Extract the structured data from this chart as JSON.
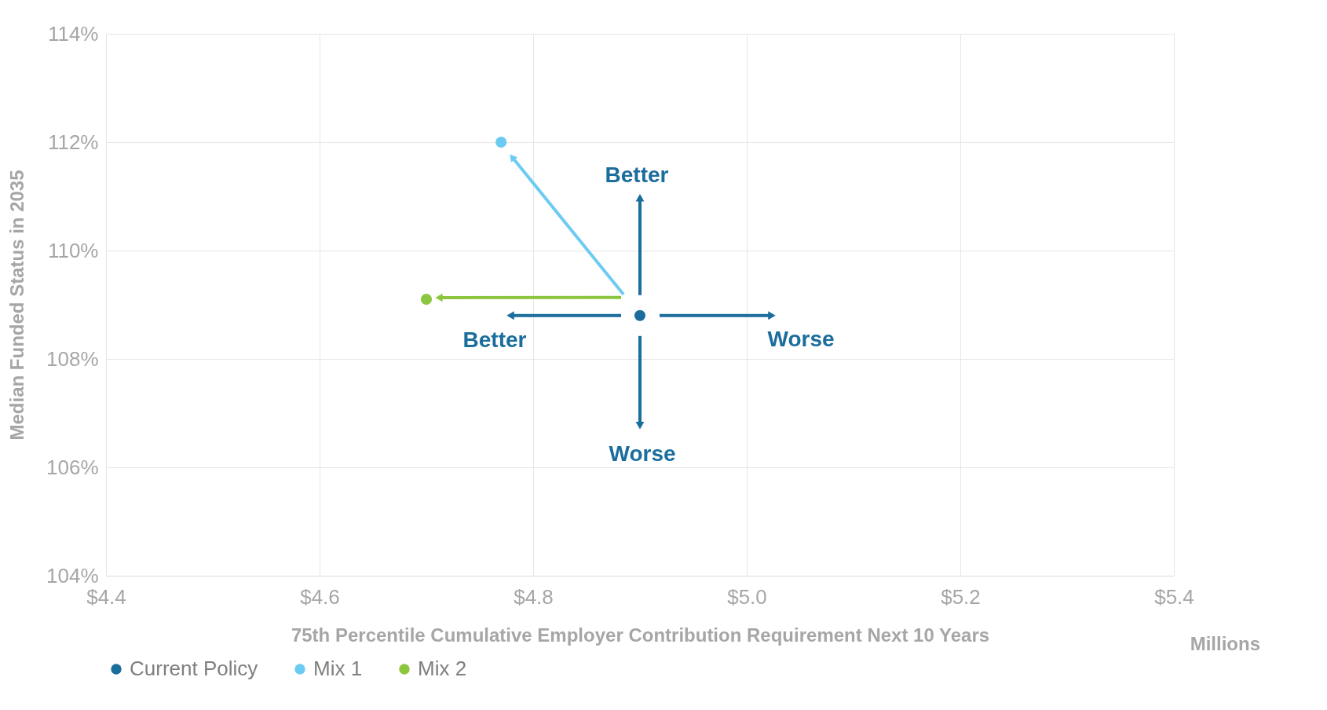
{
  "chart_data": {
    "type": "scatter",
    "xlabel": "75th Percentile Cumulative Employer Contribution Requirement Next 10 Years",
    "ylabel": "Median Funded Status in 2035",
    "series": [
      {
        "name": "Current Policy",
        "color": "#1a6d9c",
        "x": [
          4.9
        ],
        "values": [
          108.8
        ]
      },
      {
        "name": "Mix 1",
        "color": "#6ccbf2",
        "x": [
          4.77
        ],
        "values": [
          112.0
        ]
      },
      {
        "name": "Mix 2",
        "color": "#8cc63f",
        "x": [
          4.7
        ],
        "values": [
          109.1
        ]
      }
    ],
    "xlim": [
      4.4,
      5.4
    ],
    "xticks": [
      {
        "value": 4.4,
        "label": "$4.4"
      },
      {
        "value": 4.6,
        "label": "$4.6"
      },
      {
        "value": 4.8,
        "label": "$4.8"
      },
      {
        "value": 5.0,
        "label": "$5.0"
      },
      {
        "value": 5.2,
        "label": "$5.2"
      },
      {
        "value": 5.4,
        "label": "$5.4"
      }
    ],
    "ylim": [
      104,
      114
    ],
    "yticks": [
      {
        "value": 104,
        "label": "104%"
      },
      {
        "value": 106,
        "label": "106%"
      },
      {
        "value": 108,
        "label": "108%"
      },
      {
        "value": 110,
        "label": "110%"
      },
      {
        "value": 112,
        "label": "112%"
      },
      {
        "value": 114,
        "label": "114%"
      }
    ],
    "annotations": [
      "Better",
      "Better",
      "Worse",
      "Worse",
      "Millions"
    ],
    "grid": true,
    "legend": "bottom",
    "marker": "circle"
  }
}
